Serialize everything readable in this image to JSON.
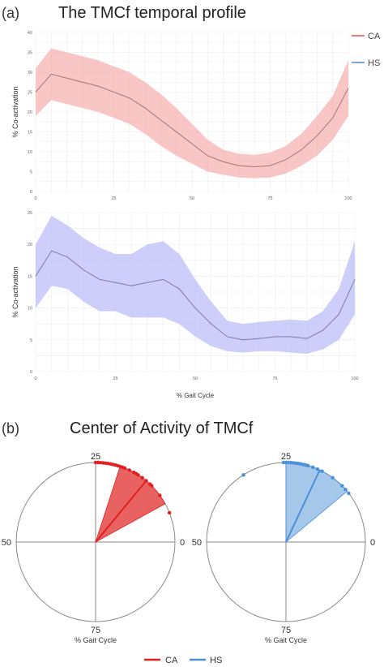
{
  "panel_a": {
    "label": "(a)",
    "title": "The TMCf temporal profile",
    "legend": [
      {
        "name": "CA",
        "color": "#e8807a"
      },
      {
        "name": "HS",
        "color": "#7fa4d6"
      }
    ],
    "xlabel_bottom": "% Gait Cycle"
  },
  "panel_b": {
    "label": "(b)",
    "title": "Center of Activity of TMCf",
    "legend": [
      {
        "name": "CA",
        "color": "#e02020"
      },
      {
        "name": "HS",
        "color": "#4a90d6"
      }
    ]
  },
  "chart_data": [
    {
      "type": "line",
      "ylabel": "% Co-activation",
      "xlabel": "",
      "xlim": [
        0,
        100
      ],
      "ylim": [
        0,
        40
      ],
      "xticks": [
        "0",
        "25",
        "50",
        "75",
        "100"
      ],
      "yticks": [
        "0",
        "5",
        "10",
        "15",
        "20",
        "25",
        "30",
        "35",
        "40"
      ],
      "grid": true,
      "colors": {
        "line": "#b07a80",
        "band": "#f7b3b3"
      },
      "x": [
        0,
        5,
        10,
        15,
        20,
        25,
        30,
        35,
        40,
        45,
        50,
        55,
        60,
        65,
        70,
        75,
        80,
        85,
        90,
        95,
        100
      ],
      "series": [
        {
          "name": "CA",
          "mean": [
            25,
            29.5,
            28.5,
            27.5,
            26.5,
            25,
            23.5,
            21,
            18,
            15,
            12,
            9,
            7.5,
            6.5,
            6.2,
            6.5,
            8,
            10.5,
            14,
            18.5,
            26
          ],
          "upper": [
            31,
            36,
            35,
            34,
            33,
            31.5,
            30,
            27.5,
            24.5,
            21,
            17,
            13,
            10.5,
            9.5,
            9.2,
            9.8,
            11.5,
            14.5,
            19,
            24,
            33
          ],
          "lower": [
            19,
            23,
            22,
            21,
            20,
            18.5,
            17,
            14.5,
            11.5,
            9,
            7,
            5,
            4.2,
            3.5,
            3.3,
            3.5,
            4.5,
            6.5,
            9,
            13,
            19
          ]
        }
      ]
    },
    {
      "type": "line",
      "ylabel": "% Co-activation",
      "xlabel": "% Gait Cycle",
      "xlim": [
        0,
        100
      ],
      "ylim": [
        0,
        25
      ],
      "xticks": [
        "0",
        "25",
        "50",
        "75",
        "100"
      ],
      "yticks": [
        "0",
        "5",
        "10",
        "15",
        "20",
        "25"
      ],
      "grid": true,
      "colors": {
        "line": "#8880b8",
        "band": "#bdbdf8"
      },
      "x": [
        0,
        5,
        10,
        15,
        20,
        25,
        30,
        35,
        40,
        45,
        50,
        55,
        60,
        65,
        70,
        75,
        80,
        85,
        90,
        95,
        100
      ],
      "series": [
        {
          "name": "HS",
          "mean": [
            15,
            19,
            18,
            16,
            14.5,
            14,
            13.5,
            14,
            14.5,
            13,
            10,
            7.5,
            5.5,
            5,
            5.2,
            5.5,
            5.5,
            5.2,
            6.5,
            9,
            14.5
          ],
          "upper": [
            20,
            24.5,
            23,
            21,
            19.5,
            18.5,
            18.5,
            20,
            20.5,
            18.5,
            14.5,
            11,
            8,
            7.5,
            7.8,
            8,
            8.2,
            8,
            9.5,
            13,
            20.5
          ],
          "lower": [
            10,
            13.5,
            13,
            11,
            9.5,
            9.5,
            8.5,
            8.5,
            8.5,
            7.5,
            5.5,
            4,
            3.2,
            3,
            3.2,
            3.2,
            3,
            2.8,
            3.5,
            5,
            9
          ]
        }
      ]
    },
    {
      "type": "scatter",
      "title": "",
      "xlabel": "% Gait Cycle",
      "projection": "polar",
      "ticks": [
        {
          "label": "0",
          "position": "right"
        },
        {
          "label": "25",
          "position": "top"
        },
        {
          "label": "50",
          "position": "left"
        },
        {
          "label": "75",
          "position": "bottom"
        }
      ],
      "series": [
        {
          "name": "CA",
          "color": "#e02020",
          "mean": 14,
          "sd_range": [
            8,
            20
          ],
          "points": [
            25,
            24.5,
            24,
            23.5,
            23,
            22.5,
            22,
            21.5,
            21,
            20.5,
            20,
            19.5,
            19,
            18,
            17,
            16.5,
            16,
            15,
            14,
            13,
            12.5,
            10,
            6
          ]
        }
      ]
    },
    {
      "type": "scatter",
      "title": "",
      "xlabel": "% Gait Cycle",
      "projection": "polar",
      "ticks": [
        {
          "label": "0",
          "position": "right"
        },
        {
          "label": "25",
          "position": "top"
        },
        {
          "label": "50",
          "position": "left"
        },
        {
          "label": "75",
          "position": "bottom"
        }
      ],
      "series": [
        {
          "name": "HS",
          "color": "#4a90d6",
          "mean": 18,
          "sd_range": [
            11,
            25
          ],
          "points": [
            25.5,
            25,
            24.5,
            24,
            23.5,
            23,
            22.5,
            22,
            21.5,
            21,
            20.5,
            19.5,
            18.5,
            17.5,
            15,
            12.5,
            11.5,
            10.5,
            34
          ]
        }
      ]
    }
  ]
}
